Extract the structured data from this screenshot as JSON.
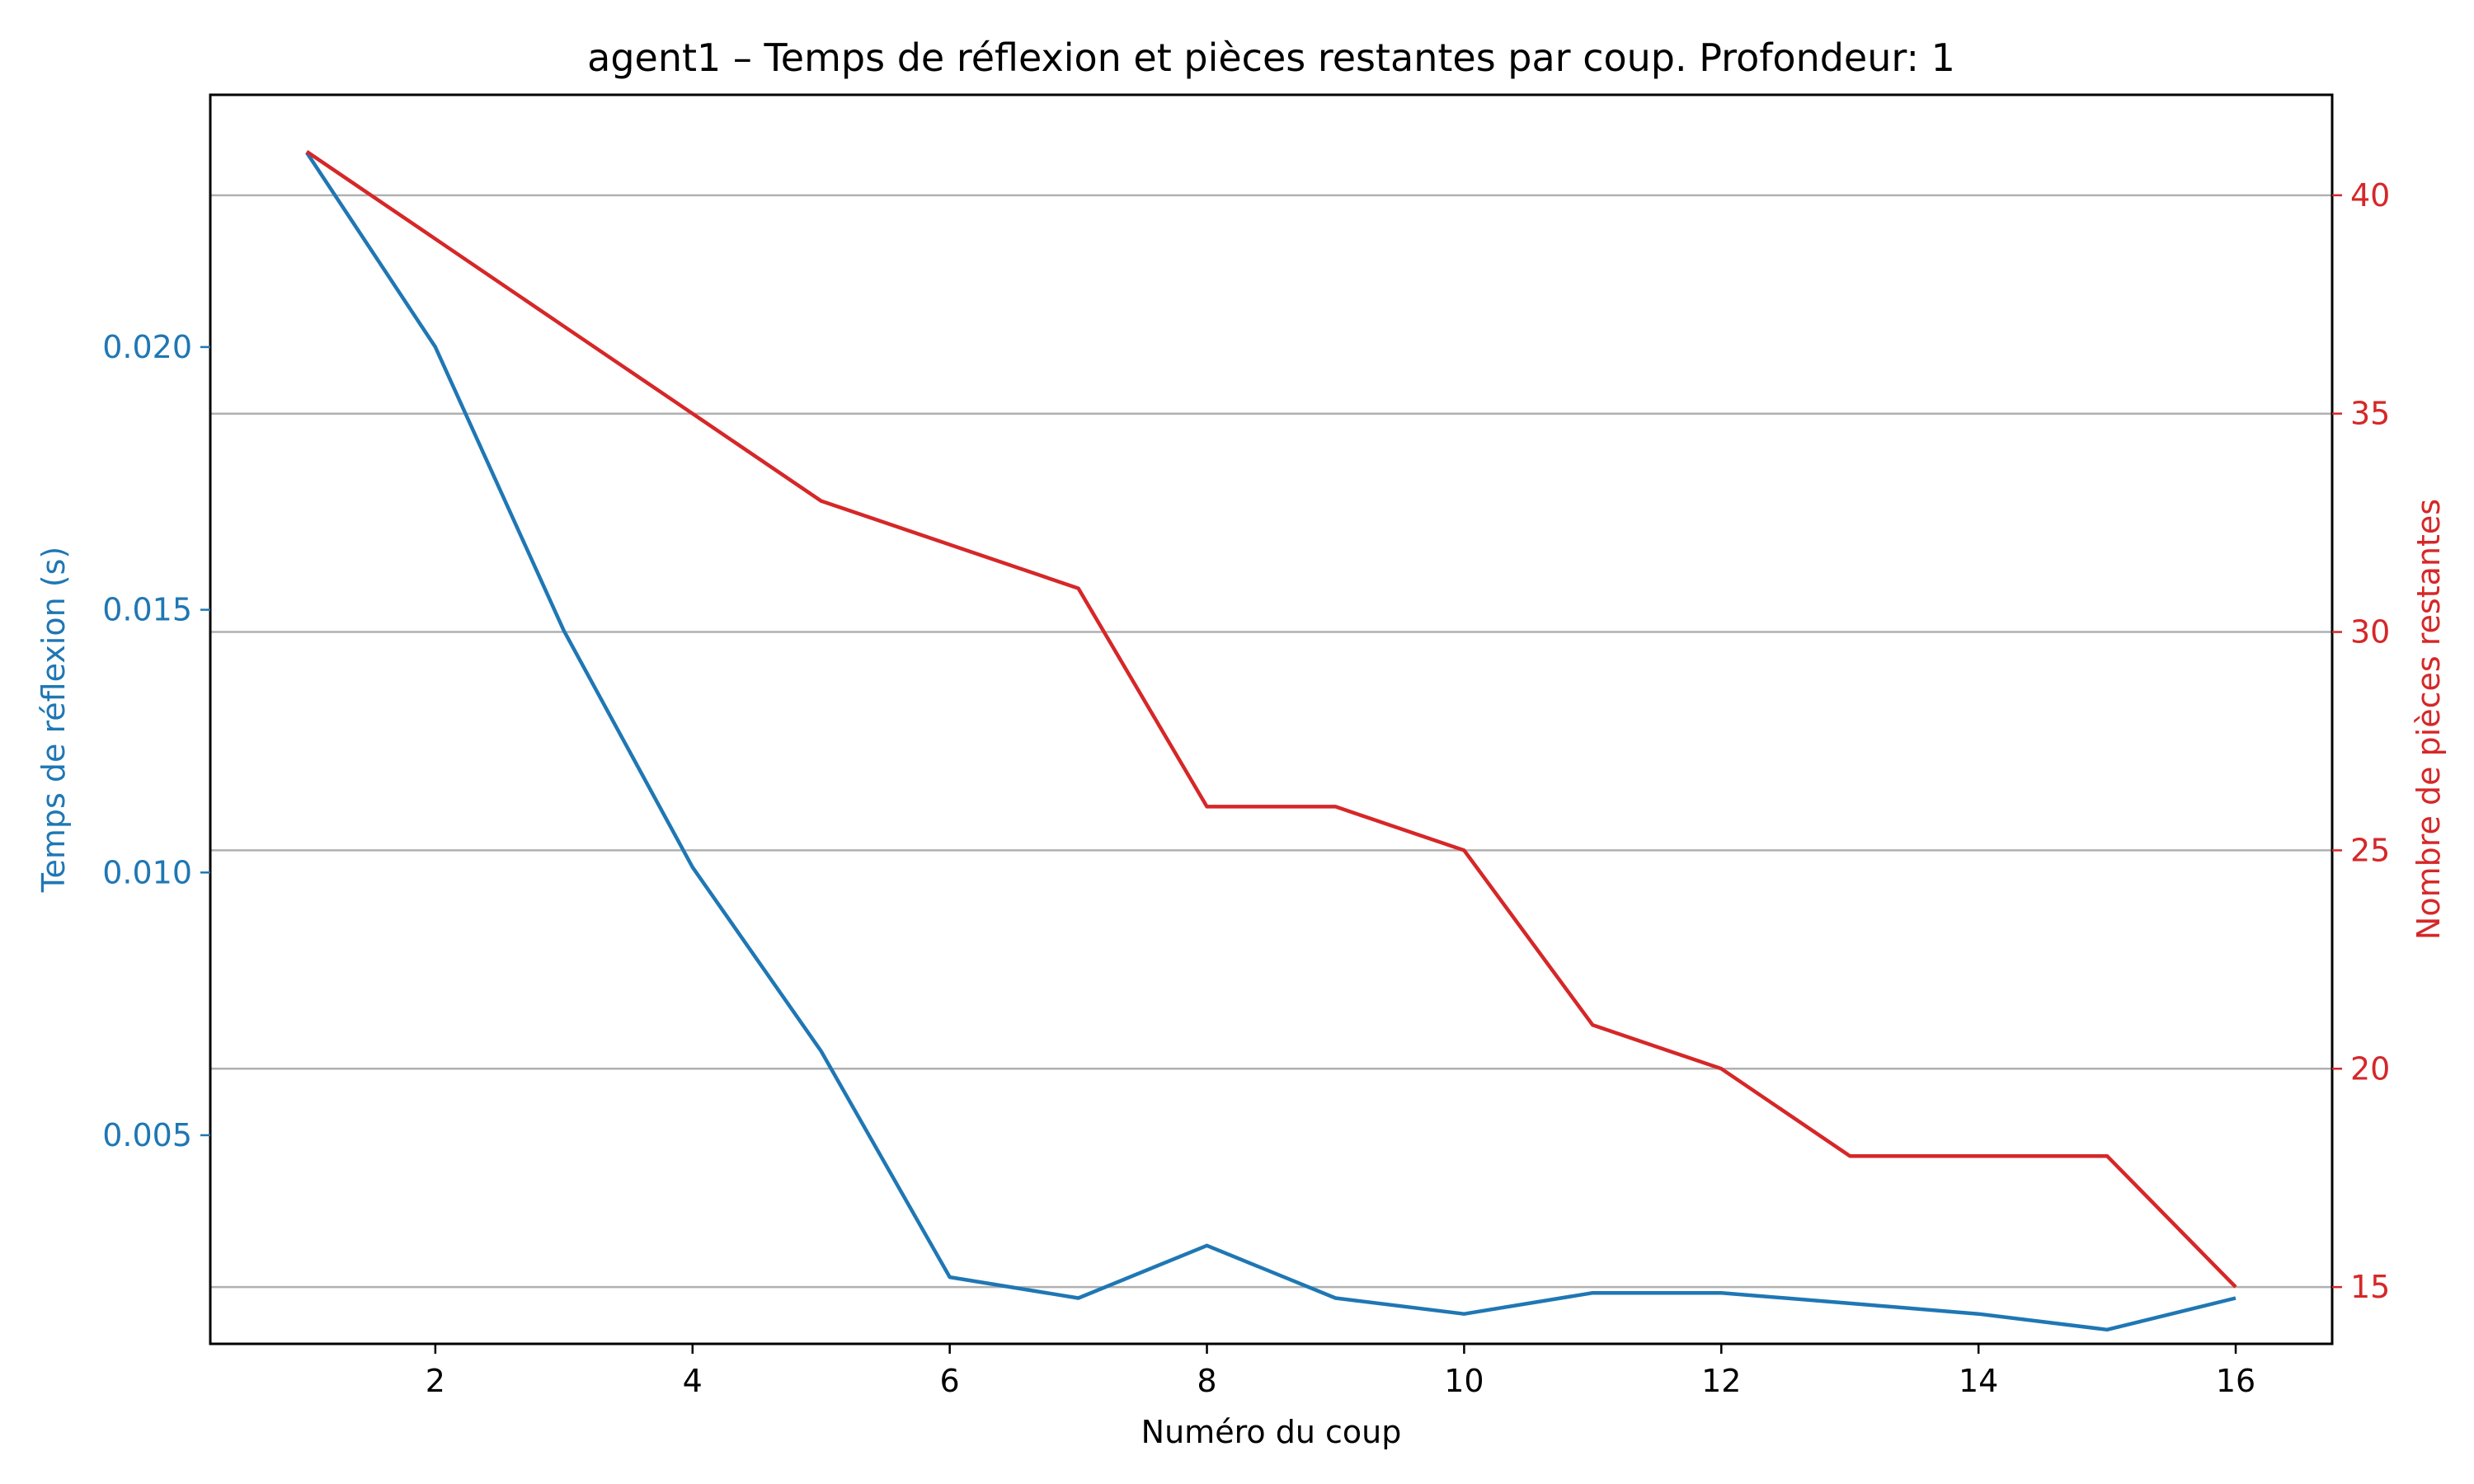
{
  "chart_data": {
    "type": "line",
    "title": "agent1 – Temps de réflexion et pièces restantes par coup. Profondeur: 1",
    "xlabel": "Numéro du coup",
    "xlim": [
      0.25,
      16.75
    ],
    "xticks": [
      2,
      4,
      6,
      8,
      10,
      12,
      14,
      16
    ],
    "x": [
      1,
      2,
      3,
      4,
      5,
      6,
      7,
      8,
      9,
      10,
      11,
      12,
      13,
      14,
      15,
      16
    ],
    "y_left": {
      "label": "Temps de réflexion (s)",
      "color": "#1f77b4",
      "lim": [
        0.00103,
        0.0248
      ],
      "ticks": [
        0.005,
        0.01,
        0.015,
        0.02
      ],
      "tick_labels": [
        "0.005",
        "0.010",
        "0.015",
        "0.020"
      ]
    },
    "y_right": {
      "label": "Nombre de pièces restantes",
      "color": "#d62728",
      "lim": [
        13.7,
        42.3
      ],
      "ticks": [
        15,
        20,
        25,
        30,
        35,
        40
      ],
      "tick_labels": [
        "15",
        "20",
        "25",
        "30",
        "35",
        "40"
      ]
    },
    "grid": "right-axis horizontal",
    "series": [
      {
        "axis": "left",
        "color": "#1f77b4",
        "values": [
          0.0237,
          0.02,
          0.0146,
          0.0101,
          0.0066,
          0.0023,
          0.0019,
          0.0029,
          0.0019,
          0.0016,
          0.002,
          0.002,
          0.0018,
          0.0016,
          0.0013,
          0.0019
        ]
      },
      {
        "axis": "right",
        "color": "#d62728",
        "values": [
          41,
          39,
          37,
          35,
          33,
          32,
          31,
          26,
          26,
          25,
          21,
          20,
          18,
          18,
          18,
          15
        ]
      }
    ]
  }
}
